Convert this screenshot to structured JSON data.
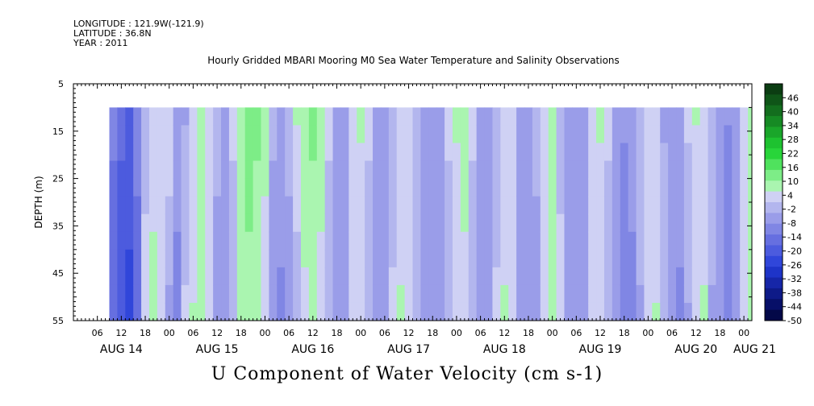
{
  "header": {
    "longitude": "LONGITUDE : 121.9W(-121.9)",
    "latitude": "LATITUDE : 36.8N",
    "year": "YEAR : 2011"
  },
  "chart_data": {
    "type": "heatmap",
    "title": "Hourly Gridded MBARI Mooring M0 Sea Water Temperature and Salinity Observations",
    "xlabel": "",
    "ylabel": "DEPTH (m)",
    "caption": "U Component of Water Velocity (cm s-1)",
    "y_ticks": [
      5,
      15,
      25,
      35,
      45,
      55
    ],
    "ylim": [
      55,
      5
    ],
    "data_depth_range": [
      10,
      55
    ],
    "x_hour_labels": [
      "06",
      "12",
      "18",
      "00",
      "06",
      "12",
      "18",
      "00",
      "06",
      "12",
      "18",
      "00",
      "06",
      "12",
      "18",
      "00",
      "06",
      "12",
      "18",
      "00",
      "06",
      "12",
      "18",
      "00",
      "06",
      "12",
      "18",
      "00"
    ],
    "x_day_labels": [
      "AUG 14",
      "AUG 15",
      "AUG 16",
      "AUG 17",
      "AUG 18",
      "AUG 19",
      "AUG 20",
      "AUG 21"
    ],
    "time_range": [
      "AUG 14 00:00",
      "AUG 21 02:00"
    ],
    "data_start": "AUG 14 09:00",
    "colorbar_labels": [
      "46",
      "40",
      "34",
      "28",
      "22",
      "16",
      "10",
      "4",
      "-2",
      "-8",
      "-14",
      "-20",
      "-26",
      "-32",
      "-38",
      "-44",
      "-50"
    ],
    "colorbar_range": [
      -50,
      52
    ],
    "colorbar_colors_high_to_low": [
      "#0b3d12",
      "#0f5518",
      "#136e1e",
      "#168a24",
      "#1aa62a",
      "#1ec230",
      "#28d53a",
      "#4fe25d",
      "#7ded87",
      "#aaf5b0",
      "#cfd1f4",
      "#b3b6ee",
      "#9a9de9",
      "#8086e4",
      "#666fe0",
      "#4c5bde",
      "#3046da",
      "#1e34c8",
      "#1626a8",
      "#0e1a88",
      "#070f68",
      "#030848"
    ],
    "bands_cm_s": [
      {
        "t": 9.0,
        "top": -12,
        "bottom": -16
      },
      {
        "t": 11.0,
        "top": -16,
        "bottom": -22
      },
      {
        "t": 13.0,
        "top": -18,
        "bottom": -24
      },
      {
        "t": 15.0,
        "top": -12,
        "bottom": -14
      },
      {
        "t": 17.0,
        "top": -4,
        "bottom": 6
      },
      {
        "t": 19.0,
        "top": 2,
        "bottom": 8
      },
      {
        "t": 21.0,
        "top": 4,
        "bottom": 4
      },
      {
        "t": 23.0,
        "top": 6,
        "bottom": -6
      },
      {
        "t": 25.0,
        "top": -6,
        "bottom": -10
      },
      {
        "t": 27.0,
        "top": -4,
        "bottom": 2
      },
      {
        "t": 29.0,
        "top": 2,
        "bottom": 6
      },
      {
        "t": 31.0,
        "top": 6,
        "bottom": 8
      },
      {
        "t": 33.0,
        "top": 4,
        "bottom": 2
      },
      {
        "t": 35.0,
        "top": -2,
        "bottom": -6
      },
      {
        "t": 37.0,
        "top": -6,
        "bottom": -8
      },
      {
        "t": 39.0,
        "top": 2,
        "bottom": -2
      },
      {
        "t": 41.0,
        "top": 10,
        "bottom": 6
      },
      {
        "t": 43.0,
        "top": 14,
        "bottom": 8
      },
      {
        "t": 45.0,
        "top": 12,
        "bottom": 6
      },
      {
        "t": 47.0,
        "top": 8,
        "bottom": 2
      },
      {
        "t": 49.0,
        "top": -2,
        "bottom": -8
      },
      {
        "t": 51.0,
        "top": -4,
        "bottom": -10
      },
      {
        "t": 53.0,
        "top": -2,
        "bottom": -6
      },
      {
        "t": 55.0,
        "top": 6,
        "bottom": -2
      },
      {
        "t": 57.0,
        "top": 10,
        "bottom": 4
      },
      {
        "t": 59.0,
        "top": 12,
        "bottom": 6
      },
      {
        "t": 61.0,
        "top": 8,
        "bottom": 4
      },
      {
        "t": 63.0,
        "top": 2,
        "bottom": -2
      },
      {
        "t": 65.0,
        "top": -6,
        "bottom": -8
      },
      {
        "t": 67.0,
        "top": -4,
        "bottom": -6
      },
      {
        "t": 69.0,
        "top": 4,
        "bottom": 2
      },
      {
        "t": 71.0,
        "top": 6,
        "bottom": 4
      },
      {
        "t": 73.0,
        "top": 2,
        "bottom": -2
      },
      {
        "t": 75.0,
        "top": -4,
        "bottom": -6
      },
      {
        "t": 77.0,
        "top": -8,
        "bottom": -4
      },
      {
        "t": 79.0,
        "top": -2,
        "bottom": 2
      },
      {
        "t": 81.0,
        "top": 4,
        "bottom": 6
      },
      {
        "t": 83.0,
        "top": 2,
        "bottom": 4
      },
      {
        "t": 85.0,
        "top": -2,
        "bottom": -2
      },
      {
        "t": 87.0,
        "top": -6,
        "bottom": -4
      },
      {
        "t": 89.0,
        "top": -8,
        "bottom": -6
      },
      {
        "t": 91.0,
        "top": -4,
        "bottom": -8
      },
      {
        "t": 93.0,
        "top": 2,
        "bottom": -2
      },
      {
        "t": 95.0,
        "top": 6,
        "bottom": 4
      },
      {
        "t": 97.0,
        "top": 8,
        "bottom": 4
      },
      {
        "t": 99.0,
        "top": 2,
        "bottom": -2
      },
      {
        "t": 101.0,
        "top": -4,
        "bottom": -8
      },
      {
        "t": 103.0,
        "top": -6,
        "bottom": -6
      },
      {
        "t": 105.0,
        "top": -2,
        "bottom": 2
      },
      {
        "t": 107.0,
        "top": 4,
        "bottom": 6
      },
      {
        "t": 109.0,
        "top": 2,
        "bottom": 2
      },
      {
        "t": 111.0,
        "top": -4,
        "bottom": -4
      },
      {
        "t": 113.0,
        "top": -6,
        "bottom": -8
      },
      {
        "t": 115.0,
        "top": -2,
        "bottom": -6
      },
      {
        "t": 117.0,
        "top": 2,
        "bottom": 2
      },
      {
        "t": 119.0,
        "top": 6,
        "bottom": 6
      },
      {
        "t": 121.0,
        "top": -2,
        "bottom": 4
      },
      {
        "t": 123.0,
        "top": -6,
        "bottom": -6
      },
      {
        "t": 125.0,
        "top": -8,
        "bottom": -8
      },
      {
        "t": 127.0,
        "top": -4,
        "bottom": -4
      },
      {
        "t": 129.0,
        "top": 2,
        "bottom": 2
      },
      {
        "t": 131.0,
        "top": 6,
        "bottom": 4
      },
      {
        "t": 133.0,
        "top": 2,
        "bottom": -2
      },
      {
        "t": 135.0,
        "top": -4,
        "bottom": -6
      },
      {
        "t": 137.0,
        "top": -8,
        "bottom": -10
      },
      {
        "t": 139.0,
        "top": -6,
        "bottom": -10
      },
      {
        "t": 141.0,
        "top": -2,
        "bottom": -4
      },
      {
        "t": 143.0,
        "top": 4,
        "bottom": 4
      },
      {
        "t": 145.0,
        "top": 2,
        "bottom": 6
      },
      {
        "t": 147.0,
        "top": -4,
        "bottom": -2
      },
      {
        "t": 149.0,
        "top": -8,
        "bottom": -8
      },
      {
        "t": 151.0,
        "top": -4,
        "bottom": -10
      },
      {
        "t": 153.0,
        "top": 2,
        "bottom": -4
      },
      {
        "t": 155.0,
        "top": 6,
        "bottom": 2
      },
      {
        "t": 157.0,
        "top": 4,
        "bottom": 6
      },
      {
        "t": 159.0,
        "top": -2,
        "bottom": -4
      },
      {
        "t": 161.0,
        "top": -6,
        "bottom": -8
      },
      {
        "t": 163.0,
        "top": -8,
        "bottom": -12
      },
      {
        "t": 165.0,
        "top": -4,
        "bottom": -6
      },
      {
        "t": 167.0,
        "top": 4,
        "bottom": 4
      },
      {
        "t": 169.0,
        "top": 6,
        "bottom": 6
      }
    ]
  }
}
